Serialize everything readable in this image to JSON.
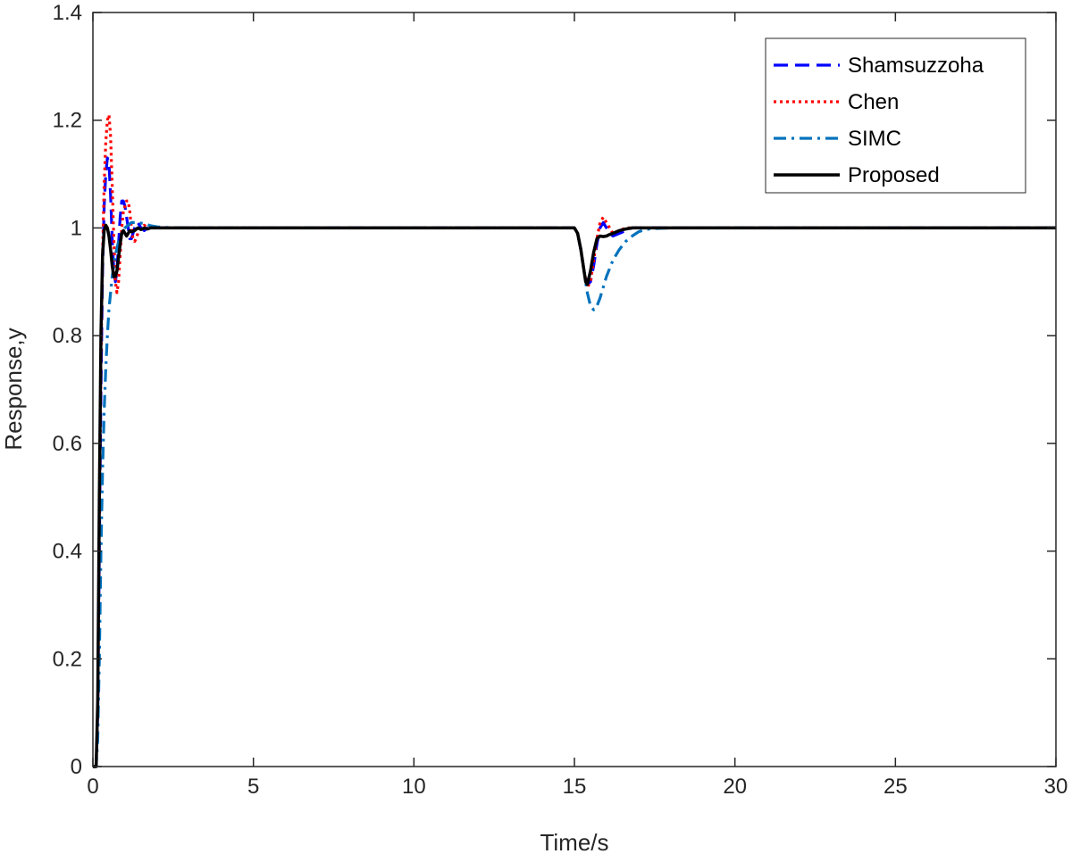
{
  "chart_data": {
    "type": "line",
    "title": "",
    "xlabel": "Time/s",
    "ylabel": "Response,y",
    "xlim": [
      0,
      30
    ],
    "ylim": [
      0,
      1.4
    ],
    "xticks": [
      0,
      5,
      10,
      15,
      20,
      25,
      30
    ],
    "xtick_labels": [
      "0",
      "5",
      "10",
      "15",
      "20",
      "25",
      "30"
    ],
    "yticks": [
      0,
      0.2,
      0.4,
      0.6,
      0.8,
      1,
      1.2,
      1.4
    ],
    "ytick_labels": [
      "0",
      "0.2",
      "0.4",
      "0.6",
      "0.8",
      "1",
      "1.2",
      "1.4"
    ],
    "grid": false,
    "legend_position": "top-right",
    "series": [
      {
        "name": "Shamsuzzoha",
        "color": "#0000ff",
        "style": "dashed",
        "x": [
          0,
          0.1,
          0.15,
          0.2,
          0.25,
          0.3,
          0.35,
          0.4,
          0.45,
          0.5,
          0.55,
          0.6,
          0.65,
          0.7,
          0.75,
          0.8,
          0.85,
          0.9,
          0.95,
          1.0,
          1.05,
          1.1,
          1.15,
          1.2,
          1.25,
          1.3,
          1.35,
          1.4,
          1.5,
          1.6,
          1.7,
          1.8,
          1.9,
          2.0,
          2.2,
          2.5,
          3.0,
          15.0,
          15.1,
          15.2,
          15.3,
          15.4,
          15.5,
          15.6,
          15.7,
          15.8,
          15.9,
          16.0,
          16.1,
          16.2,
          16.4,
          16.6,
          16.8,
          17.0,
          17.5,
          18.0,
          30.0
        ],
        "y": [
          0,
          0,
          0.1,
          0.4,
          0.7,
          0.92,
          1.04,
          1.1,
          1.13,
          1.12,
          1.06,
          0.98,
          0.92,
          0.9,
          0.92,
          0.97,
          1.02,
          1.05,
          1.05,
          1.04,
          1.02,
          1.0,
          0.98,
          0.98,
          0.99,
          1.0,
          1.01,
          1.01,
          1.0,
          0.995,
          1.0,
          1.0,
          1.0,
          1.0,
          1.0,
          1.0,
          1.0,
          1.0,
          0.99,
          0.96,
          0.92,
          0.895,
          0.9,
          0.93,
          0.97,
          1.0,
          1.01,
          1.0,
          0.99,
          0.985,
          0.99,
          0.995,
          1.0,
          1.0,
          1.0,
          1.0,
          1.0
        ]
      },
      {
        "name": "Chen",
        "color": "#ff0000",
        "style": "dotted",
        "x": [
          0,
          0.1,
          0.15,
          0.2,
          0.25,
          0.3,
          0.35,
          0.4,
          0.45,
          0.5,
          0.55,
          0.6,
          0.65,
          0.7,
          0.75,
          0.8,
          0.85,
          0.9,
          0.95,
          1.0,
          1.05,
          1.1,
          1.15,
          1.2,
          1.25,
          1.3,
          1.35,
          1.4,
          1.5,
          1.6,
          1.7,
          1.8,
          1.9,
          2.0,
          2.2,
          2.5,
          3.0,
          15.0,
          15.1,
          15.2,
          15.3,
          15.4,
          15.5,
          15.6,
          15.7,
          15.8,
          15.9,
          16.0,
          16.1,
          16.2,
          16.4,
          16.6,
          16.8,
          17.0,
          17.5,
          18.0,
          30.0
        ],
        "y": [
          0,
          0,
          0.1,
          0.45,
          0.75,
          0.95,
          1.08,
          1.16,
          1.2,
          1.21,
          1.17,
          1.08,
          0.98,
          0.9,
          0.88,
          0.9,
          0.95,
          1.0,
          1.03,
          1.04,
          1.05,
          1.05,
          1.03,
          1.0,
          0.98,
          0.975,
          0.98,
          0.99,
          1.0,
          1.005,
          1.0,
          1.0,
          1.0,
          1.0,
          1.0,
          1.0,
          1.0,
          1.0,
          0.99,
          0.96,
          0.92,
          0.89,
          0.9,
          0.94,
          0.98,
          1.01,
          1.02,
          1.01,
          1.0,
          0.99,
          0.995,
          1.0,
          1.0,
          1.0,
          1.0,
          1.0,
          1.0
        ]
      },
      {
        "name": "SIMC",
        "color": "#0072bd",
        "style": "dashdot",
        "x": [
          0,
          0.1,
          0.15,
          0.2,
          0.25,
          0.3,
          0.35,
          0.4,
          0.45,
          0.5,
          0.6,
          0.7,
          0.8,
          0.9,
          1.0,
          1.1,
          1.2,
          1.4,
          1.6,
          1.8,
          2.0,
          2.5,
          3.0,
          15.0,
          15.1,
          15.2,
          15.3,
          15.4,
          15.5,
          15.6,
          15.7,
          15.8,
          15.9,
          16.0,
          16.2,
          16.4,
          16.6,
          16.8,
          17.0,
          17.2,
          17.5,
          18.0,
          30.0
        ],
        "y": [
          0,
          0,
          0.05,
          0.2,
          0.4,
          0.55,
          0.66,
          0.74,
          0.8,
          0.85,
          0.91,
          0.95,
          0.975,
          0.99,
          1.0,
          1.005,
          1.01,
          1.01,
          1.008,
          1.004,
          1.002,
          1.0,
          1.0,
          1.0,
          0.99,
          0.96,
          0.92,
          0.88,
          0.855,
          0.848,
          0.855,
          0.87,
          0.89,
          0.91,
          0.94,
          0.96,
          0.975,
          0.985,
          0.993,
          0.997,
          0.999,
          1.0,
          1.0
        ]
      },
      {
        "name": "Proposed",
        "color": "#000000",
        "style": "solid",
        "x": [
          0,
          0.1,
          0.15,
          0.2,
          0.25,
          0.3,
          0.35,
          0.4,
          0.45,
          0.5,
          0.55,
          0.6,
          0.65,
          0.7,
          0.75,
          0.8,
          0.85,
          0.9,
          0.95,
          1.0,
          1.05,
          1.1,
          1.15,
          1.2,
          1.3,
          1.4,
          1.5,
          1.6,
          1.7,
          1.8,
          2.0,
          2.5,
          3.0,
          15.0,
          15.1,
          15.2,
          15.3,
          15.35,
          15.4,
          15.5,
          15.6,
          15.7,
          15.8,
          15.9,
          16.0,
          16.1,
          16.2,
          16.4,
          16.6,
          16.8,
          17.0,
          17.5,
          30.0
        ],
        "y": [
          0,
          0,
          0.12,
          0.5,
          0.8,
          0.95,
          0.995,
          1.005,
          1.0,
          0.985,
          0.96,
          0.93,
          0.91,
          0.91,
          0.92,
          0.945,
          0.97,
          0.99,
          0.995,
          0.99,
          0.985,
          0.99,
          0.995,
          0.993,
          0.995,
          1.0,
          0.997,
          1.0,
          0.998,
          1.0,
          1.0,
          1.0,
          1.0,
          1.0,
          0.99,
          0.96,
          0.92,
          0.9,
          0.895,
          0.92,
          0.955,
          0.98,
          0.985,
          0.984,
          0.985,
          0.988,
          0.99,
          0.995,
          0.998,
          1.0,
          1.0,
          1.0,
          1.0
        ]
      }
    ]
  }
}
